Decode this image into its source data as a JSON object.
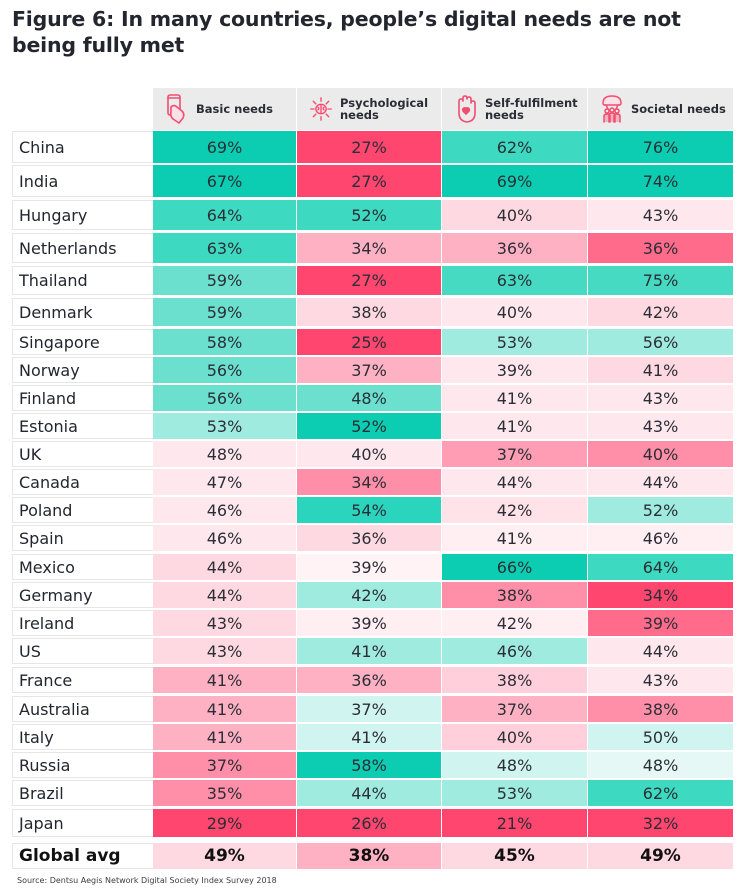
{
  "title": "Figure 6: In many countries, people’s digital needs are not being fully met",
  "columns": [
    {
      "label": "Basic needs",
      "icon": "phone-hand-icon"
    },
    {
      "label": "Psychological\nneeds",
      "icon": "brain-icon"
    },
    {
      "label": "Self-fulfilment\nneeds",
      "icon": "raised-hand-heart-icon"
    },
    {
      "label": "Societal needs",
      "icon": "people-group-icon"
    }
  ],
  "source": "Source: Dentsu Aegis Network Digital Society Index Survey 2018",
  "palette": {
    "header_bg": "#ebebeb",
    "icon_color": "#f24d6f"
  },
  "chart_data": {
    "type": "heatmap",
    "title": "Figure 6: In many countries, people’s digital needs are not being fully met",
    "columns": [
      "Basic needs",
      "Psychological needs",
      "Self-fulfilment needs",
      "Societal needs"
    ],
    "unit": "%",
    "rows": [
      {
        "country": "China",
        "values": [
          69,
          27,
          62,
          76
        ],
        "colors": [
          "#0ccdb2",
          "#ff466f",
          "#3dd9c1",
          "#0ccdb2"
        ]
      },
      {
        "country": "India",
        "values": [
          67,
          27,
          69,
          74
        ],
        "colors": [
          "#0ccdb2",
          "#ff466f",
          "#0ccdb2",
          "#0ccdb2"
        ]
      },
      {
        "country": "Hungary",
        "values": [
          64,
          52,
          40,
          43
        ],
        "colors": [
          "#3dd9c1",
          "#3dd9c1",
          "#ffd9e1",
          "#ffe8ed"
        ]
      },
      {
        "country": "Netherlands",
        "values": [
          63,
          34,
          36,
          36
        ],
        "colors": [
          "#3dd9c1",
          "#ffb1c4",
          "#ffb1c4",
          "#ff6b8b"
        ]
      },
      {
        "country": "Thailand",
        "values": [
          59,
          27,
          63,
          75
        ],
        "colors": [
          "#6be0cf",
          "#ff466f",
          "#47dac3",
          "#47dac3"
        ]
      },
      {
        "country": "Denmark",
        "values": [
          59,
          38,
          40,
          42
        ],
        "colors": [
          "#6be0cf",
          "#ffd9e1",
          "#ffe8ed",
          "#ffd9e1"
        ]
      },
      {
        "country": "Singapore",
        "values": [
          58,
          25,
          53,
          56
        ],
        "colors": [
          "#6be0cf",
          "#ff466f",
          "#a0ebdf",
          "#a0ebdf"
        ]
      },
      {
        "country": "Norway",
        "values": [
          56,
          37,
          39,
          41
        ],
        "colors": [
          "#6be0cf",
          "#ffb1c4",
          "#ffe8ed",
          "#ffd9e1"
        ]
      },
      {
        "country": "Finland",
        "values": [
          56,
          48,
          41,
          43
        ],
        "colors": [
          "#6be0cf",
          "#6be0cf",
          "#ffe8ed",
          "#ffe8ed"
        ]
      },
      {
        "country": "Estonia",
        "values": [
          53,
          52,
          41,
          43
        ],
        "colors": [
          "#a0ebdf",
          "#0ccdb2",
          "#ffe8ed",
          "#ffe8ed"
        ]
      },
      {
        "country": "UK",
        "values": [
          48,
          40,
          37,
          40
        ],
        "colors": [
          "#ffe8ed",
          "#ffe8ed",
          "#ff9db4",
          "#ff8fa8"
        ]
      },
      {
        "country": "Canada",
        "values": [
          47,
          34,
          44,
          44
        ],
        "colors": [
          "#ffe8ed",
          "#ff8fa8",
          "#ffe8ed",
          "#ffe8ed"
        ]
      },
      {
        "country": "Poland",
        "values": [
          46,
          54,
          42,
          52
        ],
        "colors": [
          "#ffe8ed",
          "#2bd5bd",
          "#ffe3e9",
          "#a0ebdf"
        ]
      },
      {
        "country": "Spain",
        "values": [
          46,
          36,
          41,
          46
        ],
        "colors": [
          "#ffe8ed",
          "#ffd9e1",
          "#ffeef2",
          "#ffeef2"
        ]
      },
      {
        "country": "Mexico",
        "values": [
          44,
          39,
          66,
          64
        ],
        "colors": [
          "#ffd9e1",
          "#fff3f5",
          "#0ccdb2",
          "#3dd9c1"
        ]
      },
      {
        "country": "Germany",
        "values": [
          44,
          42,
          38,
          34
        ],
        "colors": [
          "#ffd9e1",
          "#a0ebdf",
          "#ff8fa8",
          "#ff466f"
        ]
      },
      {
        "country": "Ireland",
        "values": [
          43,
          39,
          42,
          39
        ],
        "colors": [
          "#ffd9e1",
          "#ffeef2",
          "#ffeef2",
          "#ff6b8b"
        ]
      },
      {
        "country": "US",
        "values": [
          43,
          41,
          46,
          44
        ],
        "colors": [
          "#ffd9e1",
          "#a0ebdf",
          "#a0ebdf",
          "#ffe8ed"
        ]
      },
      {
        "country": "France",
        "values": [
          41,
          36,
          38,
          43
        ],
        "colors": [
          "#ffb1c4",
          "#ffb1c4",
          "#ffd0db",
          "#ffe8ed"
        ]
      },
      {
        "country": "Australia",
        "values": [
          41,
          37,
          37,
          38
        ],
        "colors": [
          "#ffb1c4",
          "#d0f4ef",
          "#ffb1c4",
          "#ff8fa8"
        ]
      },
      {
        "country": "Italy",
        "values": [
          41,
          41,
          40,
          50
        ],
        "colors": [
          "#ffb1c4",
          "#d0f4ef",
          "#ffd0db",
          "#d0f4ef"
        ]
      },
      {
        "country": "Russia",
        "values": [
          37,
          58,
          48,
          48
        ],
        "colors": [
          "#ff8fa8",
          "#0ccdb2",
          "#d0f4ef",
          "#e6f8f5"
        ]
      },
      {
        "country": "Brazil",
        "values": [
          35,
          44,
          53,
          62
        ],
        "colors": [
          "#ff8fa8",
          "#a0ebdf",
          "#a0ebdf",
          "#3dd9c1"
        ]
      },
      {
        "country": "Japan",
        "values": [
          29,
          26,
          21,
          32
        ],
        "colors": [
          "#ff466f",
          "#ff466f",
          "#ff466f",
          "#ff466f"
        ]
      }
    ],
    "average": {
      "country": "Global avg",
      "values": [
        49,
        38,
        45,
        49
      ],
      "colors": [
        "#ffd9e1",
        "#ffb1c4",
        "#ffd9e1",
        "#ffd9e1"
      ]
    },
    "legend": "none"
  }
}
